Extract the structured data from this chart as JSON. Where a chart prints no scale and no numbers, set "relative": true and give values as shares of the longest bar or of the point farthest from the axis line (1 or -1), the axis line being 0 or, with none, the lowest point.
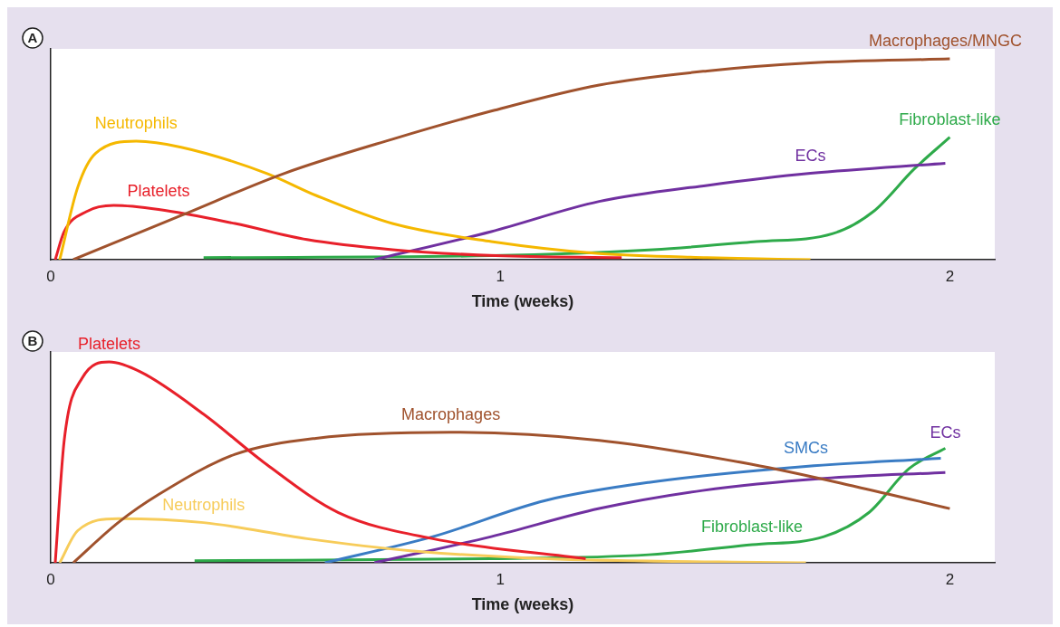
{
  "chart_data": [
    {
      "type": "line",
      "title": "A",
      "xlabel": "Time (weeks)",
      "relative": true,
      "xlim": [
        0,
        2.1
      ],
      "xticks": [
        0,
        1,
        2
      ],
      "grid": false,
      "legend": false,
      "marker": "none",
      "line_style": "solid",
      "series": [
        {
          "name": "Macrophages/MNGC",
          "color": "#a0522d",
          "x": [
            0.05,
            0.29,
            0.52,
            0.76,
            0.98,
            1.22,
            1.46,
            1.69,
            2
          ],
          "values": [
            0,
            0.22,
            0.43,
            0.6,
            0.74,
            0.87,
            0.94,
            0.98,
            1
          ]
        },
        {
          "name": "Neutrophils",
          "color": "#f5b800",
          "x": [
            0.02,
            0.06,
            0.1,
            0.19,
            0.29,
            0.48,
            0.59,
            0.76,
            0.98,
            1.22,
            1.46,
            1.69
          ],
          "values": [
            0,
            0.36,
            0.53,
            0.59,
            0.56,
            0.43,
            0.32,
            0.18,
            0.09,
            0.03,
            0.01,
            0
          ]
        },
        {
          "name": "Platelets",
          "color": "#e8202a",
          "x": [
            0.01,
            0.03,
            0.08,
            0.14,
            0.24,
            0.41,
            0.57,
            0.76,
            0.99,
            1.27
          ],
          "values": [
            0,
            0.14,
            0.24,
            0.27,
            0.25,
            0.18,
            0.1,
            0.05,
            0.02,
            0.01
          ]
        },
        {
          "name": "ECs",
          "color": "#7030a0",
          "x": [
            0.72,
            0.98,
            1.22,
            1.46,
            1.69,
            1.99
          ],
          "values": [
            0,
            0.14,
            0.29,
            0.37,
            0.43,
            0.48
          ]
        },
        {
          "name": "Fibroblast-like",
          "color": "#2eaa4a",
          "x": [
            0.34,
            0.98,
            1.34,
            1.57,
            1.74,
            1.83,
            1.92,
            2
          ],
          "values": [
            0.01,
            0.02,
            0.05,
            0.09,
            0.13,
            0.24,
            0.45,
            0.61
          ]
        }
      ]
    },
    {
      "type": "line",
      "title": "B",
      "xlabel": "Time (weeks)",
      "relative": true,
      "xlim": [
        0,
        2.1
      ],
      "xticks": [
        0,
        1,
        2
      ],
      "grid": false,
      "legend": false,
      "marker": "none",
      "line_style": "solid",
      "series": [
        {
          "name": "Platelets",
          "color": "#e8202a",
          "x": [
            0.01,
            0.03,
            0.07,
            0.13,
            0.2,
            0.34,
            0.48,
            0.64,
            0.85,
            1.19
          ],
          "values": [
            0,
            0.61,
            0.92,
            1,
            0.95,
            0.74,
            0.49,
            0.25,
            0.12,
            0.02
          ]
        },
        {
          "name": "Macrophages",
          "color": "#a0522d",
          "x": [
            0.05,
            0.15,
            0.24,
            0.41,
            0.59,
            0.89,
            1.22,
            1.56,
            1.79,
            2
          ],
          "values": [
            0,
            0.2,
            0.34,
            0.54,
            0.62,
            0.65,
            0.61,
            0.49,
            0.38,
            0.27
          ]
        },
        {
          "name": "Neutrophils",
          "color": "#f7cc5a",
          "x": [
            0.02,
            0.06,
            0.15,
            0.34,
            0.57,
            0.8,
            1.1,
            1.68
          ],
          "values": [
            0,
            0.16,
            0.22,
            0.2,
            0.12,
            0.06,
            0.02,
            0
          ]
        },
        {
          "name": "SMCs",
          "color": "#3a7cc4",
          "x": [
            0.61,
            0.85,
            1.1,
            1.33,
            1.68,
            1.98
          ],
          "values": [
            0,
            0.13,
            0.31,
            0.4,
            0.48,
            0.52
          ]
        },
        {
          "name": "ECs",
          "color": "#7030a0",
          "x": [
            0.72,
            0.98,
            1.22,
            1.45,
            1.72,
            1.99
          ],
          "values": [
            0,
            0.13,
            0.27,
            0.36,
            0.42,
            0.45
          ]
        },
        {
          "name": "Fibroblast-like",
          "color": "#2eaa4a",
          "x": [
            0.32,
            0.98,
            1.33,
            1.56,
            1.72,
            1.82,
            1.91,
            1.99
          ],
          "values": [
            0.01,
            0.02,
            0.04,
            0.09,
            0.13,
            0.25,
            0.47,
            0.57
          ]
        }
      ]
    }
  ]
}
